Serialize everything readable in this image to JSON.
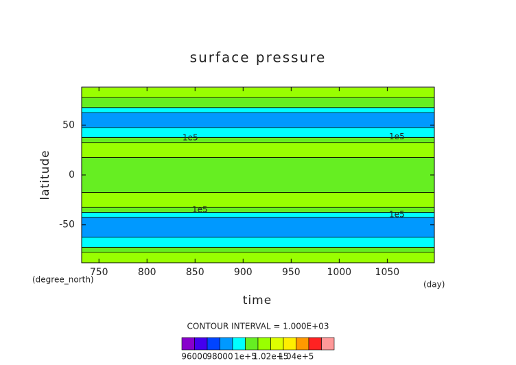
{
  "chart_data": {
    "type": "contour",
    "title": "surface pressure",
    "xlabel": "time",
    "ylabel": "latitude",
    "xunit": "(day)",
    "yunit": "(degree_north)",
    "subtitle": "CONTOUR INTERVAL = 1.000E+03",
    "xlim": [
      732,
      1099
    ],
    "ylim": [
      -88,
      88
    ],
    "xticks": [
      750,
      800,
      850,
      900,
      950,
      1000,
      1050
    ],
    "yticks": [
      -50,
      0,
      50
    ],
    "y": [
      85,
      80,
      75,
      70,
      65,
      60,
      55,
      50,
      45,
      40,
      35,
      30,
      25,
      20,
      15,
      10,
      5,
      0,
      -5,
      -10,
      -15,
      -20,
      -25,
      -30,
      -35,
      -40,
      -45,
      -50,
      -55,
      -60,
      -65,
      -70,
      -75,
      -80,
      -85
    ],
    "values": [
      101500,
      101000,
      100500,
      100000,
      99000,
      98600,
      98500,
      98300,
      99000,
      99600,
      100000,
      101000,
      101300,
      101000,
      100500,
      100300,
      100300,
      100300,
      100300,
      100300,
      100600,
      101000,
      101400,
      101000,
      100200,
      99500,
      98800,
      98200,
      98000,
      98300,
      99000,
      99800,
      100500,
      101000,
      101500
    ],
    "contour_labels": [
      {
        "text": "1e5",
        "x": 845,
        "y": 37
      },
      {
        "text": "1e5",
        "x": 1060,
        "y": 38
      },
      {
        "text": "1e5",
        "x": 855,
        "y": -35
      },
      {
        "text": "1e5",
        "x": 1060,
        "y": -40
      }
    ],
    "colorbar": {
      "levels": [
        95000,
        96000,
        97000,
        98000,
        99000,
        100000,
        101000,
        102000,
        103000,
        104000,
        105000,
        106000,
        107000
      ],
      "colors": [
        "#8800cc",
        "#4400ee",
        "#0044ff",
        "#0099ff",
        "#00ffff",
        "#66ee22",
        "#99ff00",
        "#ddff00",
        "#ffee00",
        "#ff9900",
        "#ff2222",
        "#ff9999"
      ],
      "ticks": [
        96000,
        98000,
        {
          "value": 100000,
          "label": "1e+5"
        },
        {
          "value": 102000,
          "label": "1.02e+5"
        },
        {
          "value": 104000,
          "label": "1.04e+5"
        }
      ]
    }
  }
}
